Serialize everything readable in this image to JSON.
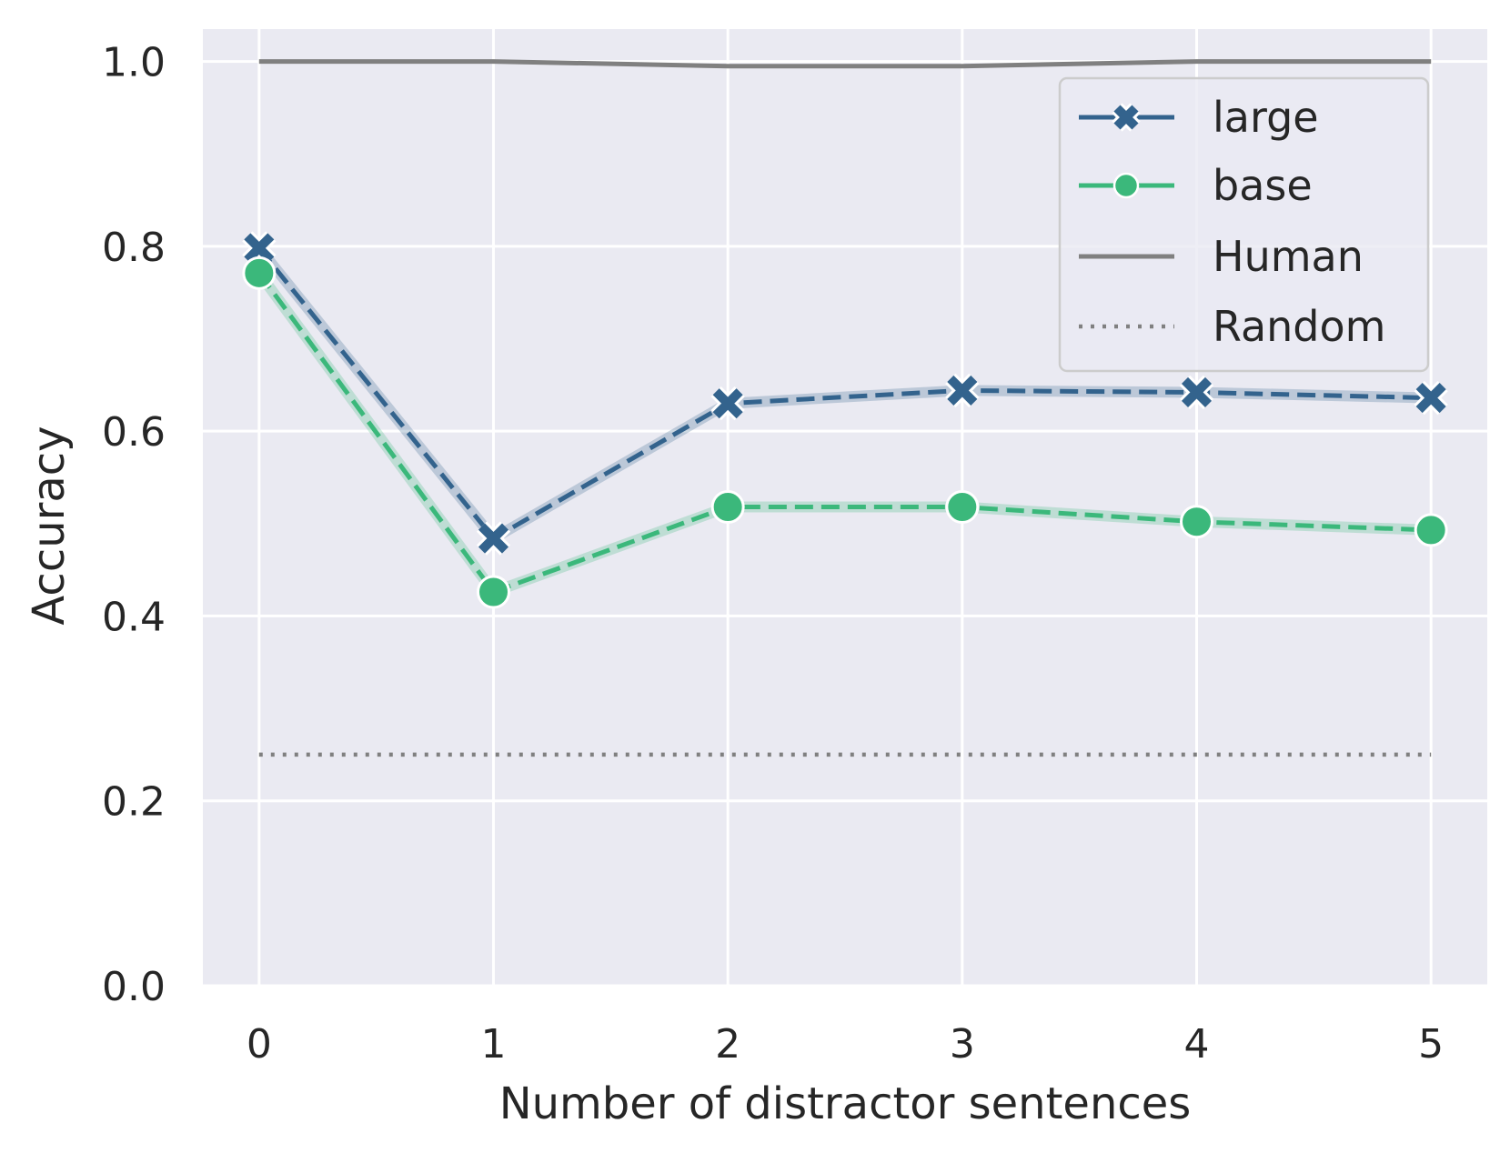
{
  "chart_data": {
    "type": "line",
    "xlabel": "Number of distractor sentences",
    "ylabel": "Accuracy",
    "x": [
      0,
      1,
      2,
      3,
      4,
      5
    ],
    "xticks": [
      "0",
      "1",
      "2",
      "3",
      "4",
      "5"
    ],
    "yticks": [
      "0.0",
      "0.2",
      "0.4",
      "0.6",
      "0.8",
      "1.0"
    ],
    "xlim": [
      -0.24,
      5.24
    ],
    "ylim": [
      0.0,
      1.035
    ],
    "grid": true,
    "legend_position": "top-right",
    "series": [
      {
        "name": "large",
        "values": [
          0.798,
          0.484,
          0.63,
          0.644,
          0.642,
          0.636
        ],
        "color": "#33638d",
        "marker": "x",
        "linestyle": "dashed"
      },
      {
        "name": "base",
        "values": [
          0.771,
          0.426,
          0.518,
          0.518,
          0.502,
          0.493
        ],
        "color": "#3bb87b",
        "marker": "o",
        "linestyle": "dashed"
      },
      {
        "name": "Human",
        "values": [
          1.0,
          1.0,
          0.995,
          0.995,
          1.0,
          1.0
        ],
        "color": "#808080",
        "marker": "none",
        "linestyle": "solid"
      },
      {
        "name": "Random",
        "values": [
          0.25,
          0.25,
          0.25,
          0.25,
          0.25,
          0.25
        ],
        "color": "#808080",
        "marker": "none",
        "linestyle": "dotted"
      }
    ]
  }
}
